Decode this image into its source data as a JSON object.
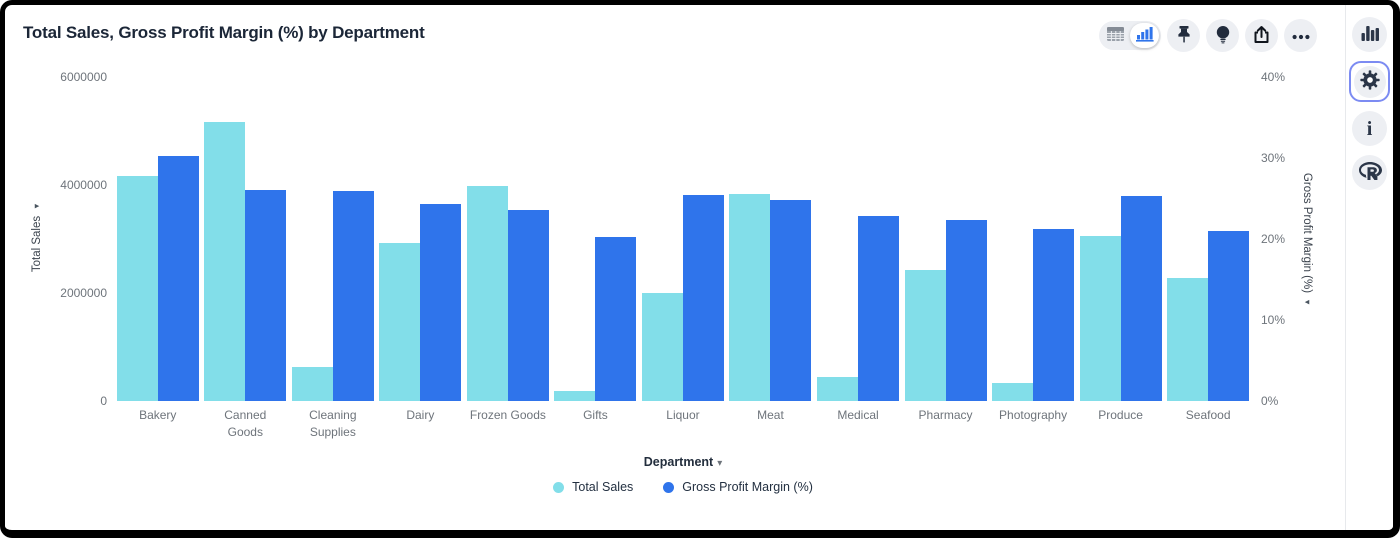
{
  "header": {
    "title": "Total Sales, Gross Profit Margin (%) by Department"
  },
  "toolbar": {
    "view_toggle": {
      "options": [
        "table-view",
        "chart-view"
      ],
      "selected": "chart-view"
    },
    "buttons": [
      "pin",
      "explore-lightbulb",
      "export-share",
      "more-options"
    ]
  },
  "right_sidebar": {
    "items": [
      {
        "icon": "bar-chart-icon",
        "selected": false
      },
      {
        "icon": "gear-icon",
        "selected": true
      },
      {
        "icon": "info-icon",
        "selected": false
      },
      {
        "icon": "r-logo-icon",
        "selected": false
      }
    ]
  },
  "colors": {
    "total_sales": "#82DEE9",
    "gross_profit_margin": "#2F74EB",
    "selected_outline": "#7C8BF2",
    "title_text": "#1B2637",
    "axis_text": "#6E747B"
  },
  "chart_data": {
    "type": "bar",
    "title": "Total Sales, Gross Profit Margin (%) by Department",
    "dual_axis": true,
    "grid": false,
    "legend_position": "bottom",
    "categories": [
      "Bakery",
      "Canned Goods",
      "Cleaning Supplies",
      "Dairy",
      "Frozen Goods",
      "Gifts",
      "Liquor",
      "Meat",
      "Medical",
      "Pharmacy",
      "Photography",
      "Produce",
      "Seafood"
    ],
    "xlabel": "Department",
    "left_axis": {
      "label": "Total Sales",
      "min": 0,
      "max": 6000000,
      "ticks": [
        {
          "label": "0",
          "value": 0
        },
        {
          "label": "2000000",
          "value": 2000000
        },
        {
          "label": "4000000",
          "value": 4000000
        },
        {
          "label": "6000000",
          "value": 6000000
        }
      ]
    },
    "right_axis": {
      "label": "Gross Profit Margin (%)",
      "min": 0,
      "max": 40,
      "ticks": [
        {
          "label": "0%",
          "value": 0
        },
        {
          "label": "10%",
          "value": 10
        },
        {
          "label": "20%",
          "value": 20
        },
        {
          "label": "30%",
          "value": 30
        },
        {
          "label": "40%",
          "value": 40
        }
      ]
    },
    "series": [
      {
        "name": "Total Sales",
        "axis": "left",
        "color": "#82DEE9",
        "values": [
          4170000,
          5160000,
          630000,
          2920000,
          3990000,
          190000,
          2000000,
          3830000,
          440000,
          2430000,
          340000,
          3060000,
          2280000
        ]
      },
      {
        "name": "Gross Profit Margin (%)",
        "axis": "right",
        "color": "#2F74EB",
        "values": [
          30.2,
          26.0,
          25.9,
          24.3,
          23.6,
          20.2,
          25.4,
          24.8,
          22.9,
          22.3,
          21.2,
          25.3,
          21.0
        ]
      }
    ],
    "legend": [
      "Total Sales",
      "Gross Profit Margin (%)"
    ],
    "xaxis_dropdown_caret": "▾",
    "left_axis_arrow": "▸",
    "right_axis_arrow": "◂"
  }
}
